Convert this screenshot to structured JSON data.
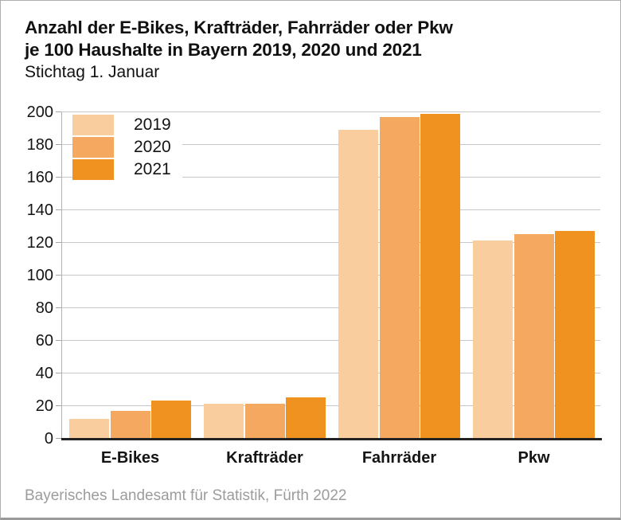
{
  "title": {
    "line1": "Anzahl der E-Bikes, Krafträder, Fahrräder oder Pkw",
    "line2": "je 100 Haushalte in Bayern 2019, 2020 und 2021",
    "subtitle": "Stichtag 1. Januar"
  },
  "footer": {
    "source": "Bayerisches Landesamt für Statistik, Fürth 2022"
  },
  "chart_data": {
    "type": "bar",
    "title": "Anzahl der E-Bikes, Krafträder, Fahrräder oder Pkw je 100 Haushalte in Bayern 2019, 2020 und 2021",
    "subtitle": "Stichtag 1. Januar",
    "categories": [
      "E-Bikes",
      "Krafträder",
      "Fahrräder",
      "Pkw"
    ],
    "series": [
      {
        "name": "2019",
        "color": "#facd9e",
        "values": [
          12,
          21,
          189,
          121
        ]
      },
      {
        "name": "2020",
        "color": "#f5a960",
        "values": [
          17,
          21,
          197,
          125
        ]
      },
      {
        "name": "2021",
        "color": "#f0921f",
        "values": [
          23,
          25,
          199,
          127
        ]
      }
    ],
    "xlabel": "",
    "ylabel": "",
    "ylim": [
      0,
      200
    ],
    "ytick_step": 20,
    "yticks": [
      0,
      20,
      40,
      60,
      80,
      100,
      120,
      140,
      160,
      180,
      200
    ],
    "grid": true,
    "legend_position": "top-left"
  }
}
